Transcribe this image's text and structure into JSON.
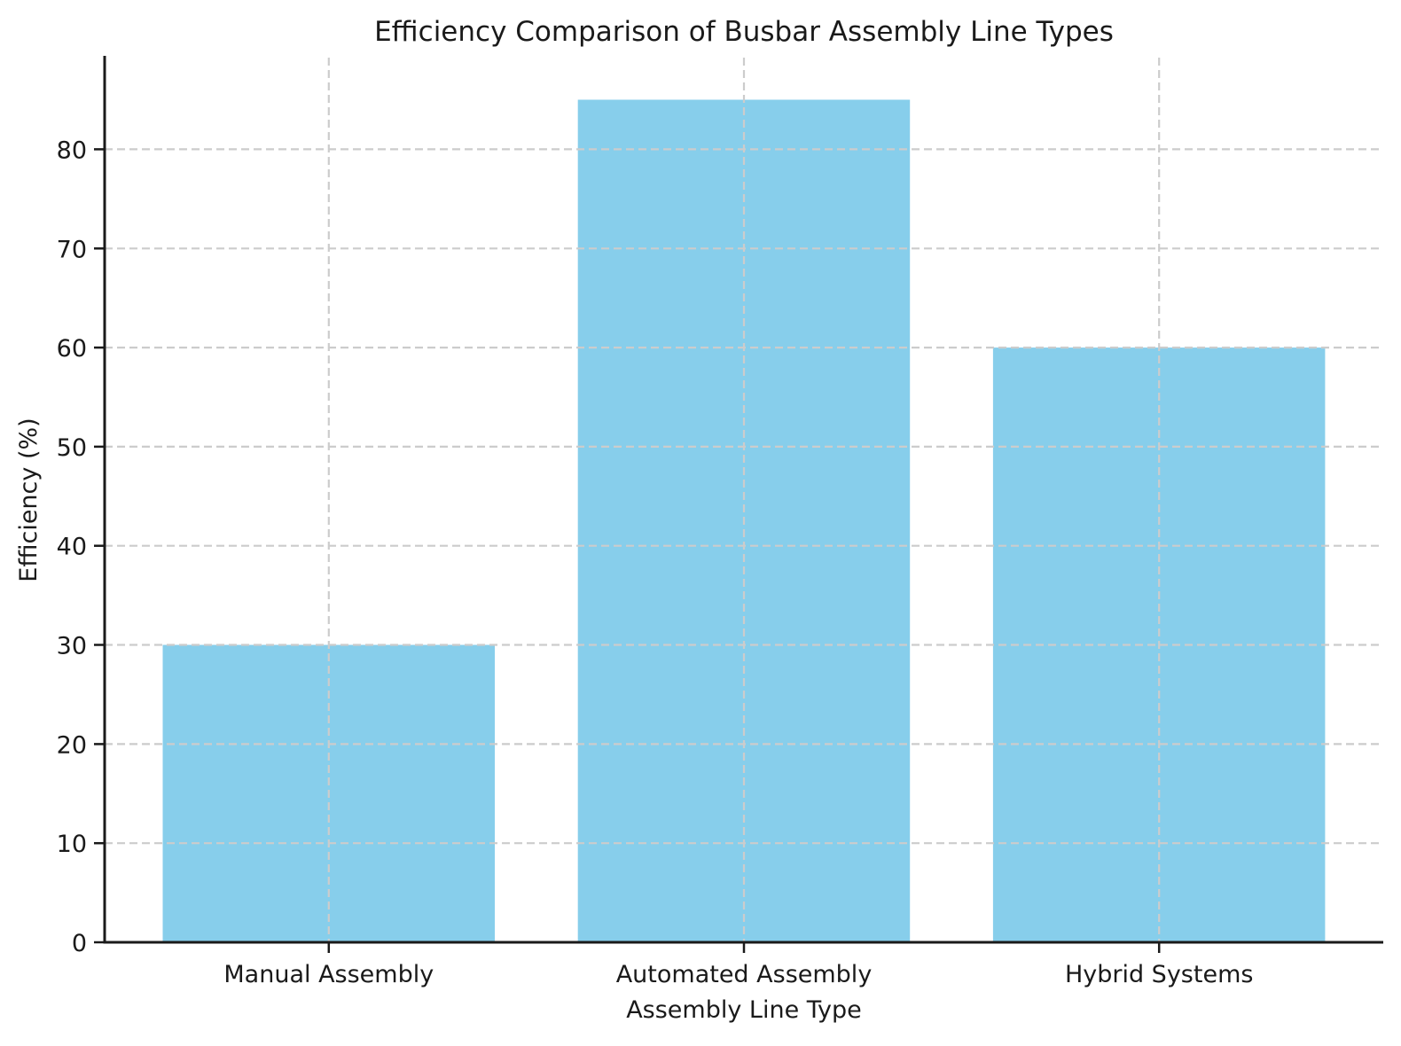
{
  "chart_data": {
    "type": "bar",
    "title": "Efficiency Comparison of Busbar Assembly Line Types",
    "xlabel": "Assembly Line Type",
    "ylabel": "Efficiency (%)",
    "categories": [
      "Manual Assembly",
      "Automated Assembly",
      "Hybrid Systems"
    ],
    "values": [
      30,
      85,
      60
    ],
    "yticks": [
      0,
      10,
      20,
      30,
      40,
      50,
      60,
      70,
      80
    ],
    "ylim": [
      0,
      89.25
    ],
    "bar_width": 0.8,
    "grid": {
      "visible": true,
      "axes": "both",
      "style": "dashed",
      "drawn_over_bars": true
    },
    "colors": {
      "bar": "#87CEEB",
      "grid": "#cccccc",
      "text": "#1a1a1a",
      "axis": "#1a1a1a",
      "background": "#ffffff"
    }
  }
}
